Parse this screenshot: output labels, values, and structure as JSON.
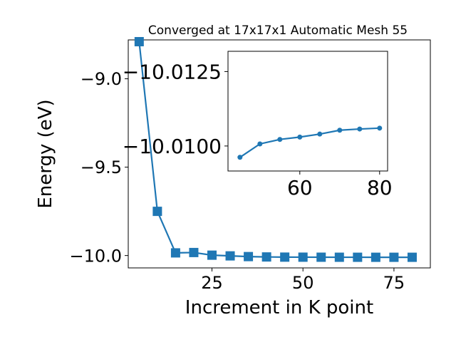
{
  "chart_data": [
    {
      "type": "line",
      "title": "Converged at 17x17x1 Automatic Mesh 55",
      "xlabel": "Increment in K point",
      "ylabel": "Energy (eV)",
      "xlim": [
        2,
        85
      ],
      "ylim": [
        -10.07,
        -8.78
      ],
      "xticks": [
        25,
        50,
        75
      ],
      "xtick_labels": [
        "25",
        "50",
        "75"
      ],
      "yticks": [
        -9.0,
        -9.5,
        -10.0
      ],
      "ytick_labels": [
        "−9.0",
        "−9.5",
        "−10.0"
      ],
      "grid": false,
      "marker": "square",
      "color": "#1f77b4",
      "x": [
        5,
        10,
        15,
        20,
        25,
        30,
        35,
        40,
        45,
        50,
        55,
        60,
        65,
        70,
        75,
        80
      ],
      "y": [
        -8.79,
        -9.75,
        -9.985,
        -9.983,
        -9.998,
        -10.002,
        -10.006,
        -10.008,
        -10.009,
        -10.0093,
        -10.0095,
        -10.0097,
        -10.0098,
        -10.0099,
        -10.0099,
        -10.0099
      ]
    },
    {
      "type": "line",
      "title": "",
      "xlim": [
        42,
        82
      ],
      "ylim": [
        -10.00916,
        -10.01318
      ],
      "xticks": [
        60,
        80
      ],
      "xtick_labels": [
        "60",
        "80"
      ],
      "yticks": [
        -10.0125,
        -10.01
      ],
      "ytick_labels": [
        "−10.0125",
        "−10.0100"
      ],
      "grid": false,
      "marker": "circle",
      "color": "#1f77b4",
      "x": [
        45,
        50,
        55,
        60,
        65,
        70,
        75,
        80
      ],
      "y": [
        -10.00962,
        -10.01007,
        -10.01022,
        -10.0103,
        -10.0104,
        -10.01053,
        -10.01057,
        -10.0106
      ]
    }
  ]
}
